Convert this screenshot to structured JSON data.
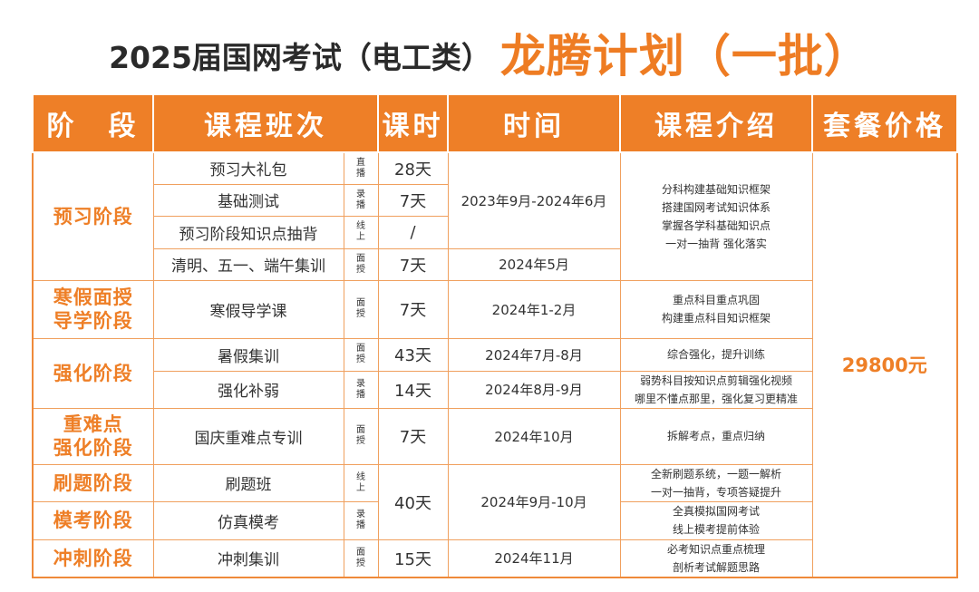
{
  "title": {
    "main": "2025届国网考试（电工类）",
    "accent": "龙腾计划（一批）"
  },
  "headers": {
    "stage": "阶　段",
    "course": "课程班次",
    "hours": "课时",
    "time": "时间",
    "intro": "课程介绍",
    "price": "套餐价格"
  },
  "stages": {
    "s1": "预习阶段",
    "s2a": "寒假面授",
    "s2b": "导学阶段",
    "s3": "强化阶段",
    "s4a": "重难点",
    "s4b": "强化阶段",
    "s5": "刷题阶段",
    "s6": "模考阶段",
    "s7": "冲刺阶段"
  },
  "rows": [
    {
      "course": "预习大礼包",
      "mode": [
        "直",
        "播"
      ],
      "days": "28天"
    },
    {
      "course": "基础测试",
      "mode": [
        "录",
        "播"
      ],
      "days": "7天"
    },
    {
      "course": "预习阶段知识点抽背",
      "mode": [
        "线",
        "上"
      ],
      "days": "/"
    },
    {
      "course": "清明、五一、端午集训",
      "mode": [
        "面",
        "授"
      ],
      "days": "7天"
    },
    {
      "course": "寒假导学课",
      "mode": [
        "面",
        "授"
      ],
      "days": "7天"
    },
    {
      "course": "暑假集训",
      "mode": [
        "面",
        "授"
      ],
      "days": "43天"
    },
    {
      "course": "强化补弱",
      "mode": [
        "录",
        "播"
      ],
      "days": "14天"
    },
    {
      "course": "国庆重难点专训",
      "mode": [
        "面",
        "授"
      ],
      "days": "7天"
    },
    {
      "course": "刷题班",
      "mode": [
        "线",
        "上"
      ],
      "days": "40天"
    },
    {
      "course": "仿真模考",
      "mode": [
        "录",
        "播"
      ]
    },
    {
      "course": "冲刺集训",
      "mode": [
        "面",
        "授"
      ],
      "days": "15天"
    }
  ],
  "times": {
    "t1": "2023年9月-2024年6月",
    "t2": "2024年5月",
    "t3": "2024年1-2月",
    "t4": "2024年7月-8月",
    "t5": "2024年8月-9月",
    "t6": "2024年10月",
    "t7": "2024年9月-10月",
    "t8": "2024年11月"
  },
  "intros": {
    "i1": [
      "分科构建基础知识框架",
      "搭建国网考试知识体系",
      "掌握各学科基础知识点",
      "一对一抽背  强化落实"
    ],
    "i2": [
      "重点科目重点巩固",
      "构建重点科目知识框架"
    ],
    "i3": [
      "综合强化，提升训练"
    ],
    "i4": [
      "弱势科目按知识点剪辑强化视频",
      "哪里不懂点那里，强化复习更精准"
    ],
    "i5": [
      "拆解考点，重点归纳"
    ],
    "i6": [
      "全新刷题系统，一题一解析",
      "一对一抽背，专项答疑提升"
    ],
    "i7": [
      "全真模拟国网考试",
      "线上模考提前体验"
    ],
    "i8": [
      "必考知识点重点梳理",
      "剖析考试解题思路"
    ]
  },
  "price": "29800元",
  "colors": {
    "accent": "#ee7f27",
    "border": "#f0a05e"
  }
}
